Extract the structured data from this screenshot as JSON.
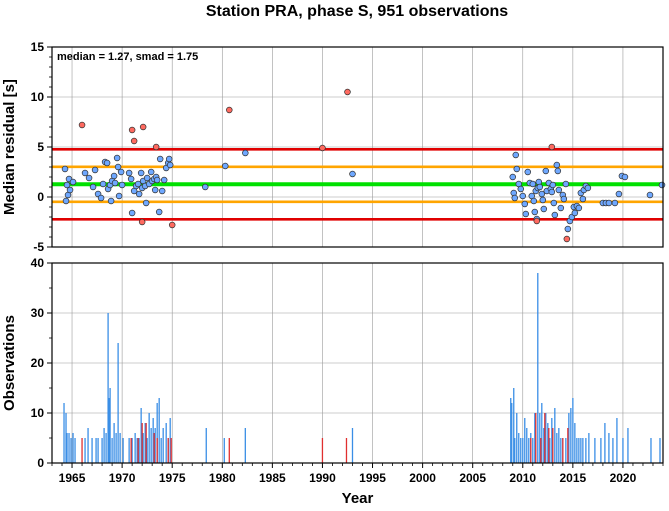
{
  "chart_data": [
    {
      "type": "scatter",
      "title": "Station PRA, phase S, 951 observations",
      "annotation": "median = 1.27, smad = 1.75",
      "xlabel": "",
      "ylabel": "Median residual [s]",
      "xlim": [
        1963,
        2024
      ],
      "ylim": [
        -5,
        15
      ],
      "yticks": [
        -5,
        0,
        5,
        10,
        15
      ],
      "xticks": [
        1965,
        1970,
        1975,
        1980,
        1985,
        1990,
        1995,
        2000,
        2005,
        2010,
        2015,
        2020
      ],
      "grid": true,
      "reference_lines": [
        {
          "y": 1.27,
          "color": "#00e000",
          "meaning": "median"
        },
        {
          "y": 3.02,
          "color": "#ffa500",
          "meaning": "+1 smad"
        },
        {
          "y": -0.48,
          "color": "#ffa500",
          "meaning": "-1 smad"
        },
        {
          "y": 4.77,
          "color": "#e00000",
          "meaning": "+2 smad"
        },
        {
          "y": -2.23,
          "color": "#e00000",
          "meaning": "-2 smad"
        }
      ],
      "series": [
        {
          "color": "#6fa8ff",
          "points": [
            [
              1964.3,
              2.8
            ],
            [
              1964.4,
              -0.4
            ],
            [
              1964.5,
              1.2
            ],
            [
              1964.6,
              0.2
            ],
            [
              1964.7,
              1.8
            ],
            [
              1964.8,
              0.7
            ],
            [
              1965.1,
              1.5
            ],
            [
              1966.3,
              2.4
            ],
            [
              1966.7,
              1.9
            ],
            [
              1967.1,
              1.0
            ],
            [
              1967.3,
              2.7
            ],
            [
              1967.6,
              0.3
            ],
            [
              1967.9,
              -0.1
            ],
            [
              1968.1,
              1.3
            ],
            [
              1968.3,
              3.5
            ],
            [
              1968.5,
              3.4
            ],
            [
              1968.6,
              0.8
            ],
            [
              1968.8,
              1.2
            ],
            [
              1968.9,
              -0.4
            ],
            [
              1969.0,
              1.6
            ],
            [
              1969.2,
              2.1
            ],
            [
              1969.3,
              1.4
            ],
            [
              1969.5,
              3.9
            ],
            [
              1969.6,
              3.0
            ],
            [
              1969.7,
              0.1
            ],
            [
              1969.9,
              2.5
            ],
            [
              1970.0,
              1.2
            ],
            [
              1970.7,
              2.4
            ],
            [
              1970.9,
              1.8
            ],
            [
              1971.0,
              -1.6
            ],
            [
              1971.2,
              0.6
            ],
            [
              1971.4,
              1.1
            ],
            [
              1971.6,
              1.3
            ],
            [
              1971.7,
              0.3
            ],
            [
              1971.9,
              2.4
            ],
            [
              1972.0,
              0.9
            ],
            [
              1972.1,
              1.6
            ],
            [
              1972.3,
              1.1
            ],
            [
              1972.4,
              -0.6
            ],
            [
              1972.5,
              1.9
            ],
            [
              1972.7,
              1.3
            ],
            [
              1972.9,
              2.5
            ],
            [
              1973.0,
              1.6
            ],
            [
              1973.2,
              1.8
            ],
            [
              1973.3,
              0.7
            ],
            [
              1973.4,
              2.0
            ],
            [
              1973.5,
              1.7
            ],
            [
              1973.7,
              -1.5
            ],
            [
              1973.8,
              3.8
            ],
            [
              1974.0,
              0.6
            ],
            [
              1974.2,
              1.7
            ],
            [
              1974.4,
              2.9
            ],
            [
              1974.6,
              3.4
            ],
            [
              1974.7,
              3.8
            ],
            [
              1974.8,
              3.2
            ],
            [
              1978.3,
              1.0
            ],
            [
              1980.3,
              3.1
            ],
            [
              1982.3,
              4.4
            ],
            [
              1993.0,
              2.3
            ],
            [
              2009.0,
              2.0
            ],
            [
              2009.1,
              0.4
            ],
            [
              2009.2,
              -0.1
            ],
            [
              2009.3,
              4.2
            ],
            [
              2009.4,
              2.8
            ],
            [
              2009.6,
              1.3
            ],
            [
              2009.8,
              0.8
            ],
            [
              2010.0,
              0.1
            ],
            [
              2010.2,
              -0.7
            ],
            [
              2010.3,
              -1.7
            ],
            [
              2010.5,
              2.5
            ],
            [
              2010.7,
              1.4
            ],
            [
              2010.9,
              0.1
            ],
            [
              2011.0,
              1.3
            ],
            [
              2011.1,
              -0.4
            ],
            [
              2011.2,
              -1.5
            ],
            [
              2011.3,
              0.6
            ],
            [
              2011.4,
              -2.2
            ],
            [
              2011.5,
              0.9
            ],
            [
              2011.6,
              1.5
            ],
            [
              2011.7,
              1.0
            ],
            [
              2011.9,
              0.3
            ],
            [
              2012.0,
              -0.3
            ],
            [
              2012.1,
              -1.2
            ],
            [
              2012.3,
              2.6
            ],
            [
              2012.4,
              0.6
            ],
            [
              2012.6,
              1.4
            ],
            [
              2012.8,
              0.8
            ],
            [
              2012.9,
              0.5
            ],
            [
              2013.0,
              1.2
            ],
            [
              2013.1,
              -0.6
            ],
            [
              2013.2,
              -1.8
            ],
            [
              2013.4,
              3.2
            ],
            [
              2013.5,
              2.6
            ],
            [
              2013.6,
              0.7
            ],
            [
              2013.8,
              -1.1
            ],
            [
              2014.0,
              0.2
            ],
            [
              2014.1,
              -0.2
            ],
            [
              2014.3,
              1.3
            ],
            [
              2014.5,
              -3.2
            ],
            [
              2014.7,
              -2.4
            ],
            [
              2014.9,
              -2.0
            ],
            [
              2015.1,
              -1.0
            ],
            [
              2015.2,
              -1.6
            ],
            [
              2015.4,
              -0.9
            ],
            [
              2015.6,
              -1.1
            ],
            [
              2015.8,
              0.4
            ],
            [
              2016.0,
              -0.2
            ],
            [
              2016.1,
              0.7
            ],
            [
              2016.3,
              1.1
            ],
            [
              2016.5,
              0.9
            ],
            [
              2018.0,
              -0.6
            ],
            [
              2018.3,
              -0.6
            ],
            [
              2018.6,
              -0.6
            ],
            [
              2019.2,
              -0.6
            ],
            [
              2019.6,
              0.3
            ],
            [
              2019.9,
              2.1
            ],
            [
              2020.2,
              2.0
            ],
            [
              2022.7,
              0.2
            ],
            [
              2023.9,
              1.2
            ]
          ]
        },
        {
          "color": "#ff6a60",
          "points": [
            [
              1966.0,
              7.2
            ],
            [
              1971.0,
              6.7
            ],
            [
              1971.2,
              5.6
            ],
            [
              1972.0,
              -2.5
            ],
            [
              1972.1,
              7.0
            ],
            [
              1973.4,
              5.0
            ],
            [
              1975.0,
              -2.8
            ],
            [
              1980.7,
              8.7
            ],
            [
              1990.0,
              4.9
            ],
            [
              1992.5,
              10.5
            ],
            [
              2011.4,
              -2.4
            ],
            [
              2012.9,
              5.0
            ],
            [
              2014.4,
              -4.2
            ]
          ]
        }
      ]
    },
    {
      "type": "bar",
      "xlabel": "Year",
      "ylabel": "Observations",
      "xlim": [
        1963,
        2024
      ],
      "ylim": [
        0,
        40
      ],
      "yticks": [
        0,
        10,
        20,
        30,
        40
      ],
      "xticks": [
        1965,
        1970,
        1975,
        1980,
        1985,
        1990,
        1995,
        2000,
        2005,
        2010,
        2015,
        2020
      ],
      "grid": true,
      "series": [
        {
          "color": "#3a8ee6",
          "bars": [
            [
              1964.2,
              12
            ],
            [
              1964.4,
              10
            ],
            [
              1964.5,
              6
            ],
            [
              1964.7,
              6
            ],
            [
              1964.9,
              5
            ],
            [
              1965.1,
              6
            ],
            [
              1965.3,
              5
            ],
            [
              1966.3,
              5
            ],
            [
              1966.6,
              7
            ],
            [
              1967.0,
              5
            ],
            [
              1967.4,
              5
            ],
            [
              1967.6,
              5
            ],
            [
              1968.0,
              5
            ],
            [
              1968.2,
              7
            ],
            [
              1968.4,
              6
            ],
            [
              1968.6,
              30
            ],
            [
              1968.7,
              13
            ],
            [
              1968.8,
              15
            ],
            [
              1969.0,
              5
            ],
            [
              1969.2,
              8
            ],
            [
              1969.4,
              6
            ],
            [
              1969.6,
              24
            ],
            [
              1969.8,
              6
            ],
            [
              1970.1,
              5
            ],
            [
              1970.7,
              5
            ],
            [
              1971.0,
              5
            ],
            [
              1971.3,
              6
            ],
            [
              1971.5,
              5
            ],
            [
              1971.7,
              5
            ],
            [
              1971.9,
              11
            ],
            [
              1972.1,
              6
            ],
            [
              1972.3,
              8
            ],
            [
              1972.5,
              5
            ],
            [
              1972.7,
              10
            ],
            [
              1972.9,
              7
            ],
            [
              1973.1,
              9
            ],
            [
              1973.3,
              7
            ],
            [
              1973.5,
              12
            ],
            [
              1973.7,
              13
            ],
            [
              1973.9,
              5
            ],
            [
              1974.1,
              7
            ],
            [
              1974.4,
              8
            ],
            [
              1974.6,
              5
            ],
            [
              1974.8,
              9
            ],
            [
              1978.4,
              7
            ],
            [
              1980.2,
              5
            ],
            [
              1982.3,
              7
            ],
            [
              1993.0,
              7
            ],
            [
              2008.8,
              13
            ],
            [
              2008.9,
              12
            ],
            [
              2009.1,
              15
            ],
            [
              2009.2,
              5
            ],
            [
              2009.4,
              10
            ],
            [
              2009.6,
              6
            ],
            [
              2009.8,
              5
            ],
            [
              2010.0,
              5
            ],
            [
              2010.2,
              9
            ],
            [
              2010.4,
              7
            ],
            [
              2010.6,
              5
            ],
            [
              2010.8,
              6
            ],
            [
              2011.0,
              5
            ],
            [
              2011.2,
              10
            ],
            [
              2011.5,
              38
            ],
            [
              2011.7,
              10
            ],
            [
              2011.9,
              12
            ],
            [
              2012.1,
              7
            ],
            [
              2012.3,
              10
            ],
            [
              2012.5,
              8
            ],
            [
              2012.7,
              5
            ],
            [
              2012.9,
              9
            ],
            [
              2013.2,
              11
            ],
            [
              2013.4,
              6
            ],
            [
              2013.6,
              7
            ],
            [
              2013.8,
              5
            ],
            [
              2014.0,
              5
            ],
            [
              2014.3,
              5
            ],
            [
              2014.6,
              10
            ],
            [
              2014.8,
              11
            ],
            [
              2015.0,
              13
            ],
            [
              2015.2,
              8
            ],
            [
              2015.4,
              5
            ],
            [
              2015.6,
              5
            ],
            [
              2015.8,
              5
            ],
            [
              2016.0,
              5
            ],
            [
              2016.3,
              5
            ],
            [
              2016.6,
              6
            ],
            [
              2017.2,
              5
            ],
            [
              2017.8,
              5
            ],
            [
              2018.2,
              8
            ],
            [
              2018.6,
              6
            ],
            [
              2019.0,
              5
            ],
            [
              2019.4,
              9
            ],
            [
              2020.0,
              5
            ],
            [
              2020.5,
              7
            ],
            [
              2022.8,
              5
            ],
            [
              2023.7,
              5
            ]
          ]
        },
        {
          "color": "#e03030",
          "bars": [
            [
              1966.0,
              5
            ],
            [
              1970.9,
              5
            ],
            [
              1971.6,
              5
            ],
            [
              1972.0,
              8
            ],
            [
              1972.4,
              8
            ],
            [
              1973.2,
              6
            ],
            [
              1973.5,
              5
            ],
            [
              1974.6,
              5
            ],
            [
              1974.9,
              5
            ],
            [
              1980.7,
              5
            ],
            [
              1990.0,
              5
            ],
            [
              1992.4,
              5
            ],
            [
              2010.8,
              5
            ],
            [
              2011.3,
              10
            ],
            [
              2011.8,
              5
            ],
            [
              2012.2,
              10
            ],
            [
              2012.6,
              7
            ],
            [
              2013.0,
              7
            ],
            [
              2014.0,
              5
            ],
            [
              2014.5,
              7
            ]
          ]
        }
      ]
    }
  ]
}
